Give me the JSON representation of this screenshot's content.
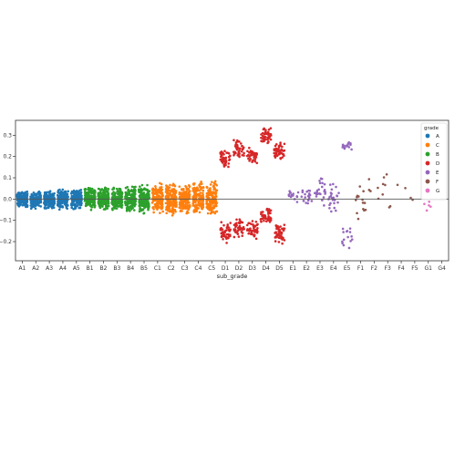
{
  "chart_data": {
    "type": "scatter",
    "subtype": "strip-plot",
    "title": "",
    "xlabel": "sub_grade",
    "ylabel": "",
    "ylim": [
      -0.29,
      0.37
    ],
    "yticks": [
      -0.2,
      -0.1,
      0.0,
      0.1,
      0.2,
      0.3
    ],
    "ytick_labels": [
      "−0.2",
      "−0.1",
      "0.0",
      "0.1",
      "0.2",
      "0.3"
    ],
    "reference_line_y": 0.0,
    "grid": false,
    "categories": [
      "A1",
      "A2",
      "A3",
      "A4",
      "A5",
      "B1",
      "B2",
      "B3",
      "B4",
      "B5",
      "C1",
      "C2",
      "C3",
      "C4",
      "C5",
      "D1",
      "D2",
      "D3",
      "D4",
      "D5",
      "E1",
      "E2",
      "E3",
      "E4",
      "E5",
      "F1",
      "F2",
      "F3",
      "F4",
      "F5",
      "G1",
      "G4"
    ],
    "legend": {
      "title": "grade",
      "placement": "top-right",
      "entries": [
        {
          "label": "A",
          "color": "#1f77b4"
        },
        {
          "label": "C",
          "color": "#ff7f0e"
        },
        {
          "label": "B",
          "color": "#2ca02c"
        },
        {
          "label": "D",
          "color": "#d62728"
        },
        {
          "label": "E",
          "color": "#9467bd"
        },
        {
          "label": "F",
          "color": "#8c564b"
        },
        {
          "label": "G",
          "color": "#e377c2"
        }
      ]
    },
    "clusters": [
      {
        "category": "A1",
        "grade": "A",
        "count": 150,
        "ranges": [
          [
            -0.04,
            0.04
          ]
        ]
      },
      {
        "category": "A2",
        "grade": "A",
        "count": 150,
        "ranges": [
          [
            -0.045,
            0.04
          ]
        ]
      },
      {
        "category": "A3",
        "grade": "A",
        "count": 150,
        "ranges": [
          [
            -0.05,
            0.04
          ]
        ]
      },
      {
        "category": "A4",
        "grade": "A",
        "count": 150,
        "ranges": [
          [
            -0.05,
            0.05
          ]
        ]
      },
      {
        "category": "A5",
        "grade": "A",
        "count": 150,
        "ranges": [
          [
            -0.05,
            0.05
          ]
        ]
      },
      {
        "category": "B1",
        "grade": "B",
        "count": 150,
        "ranges": [
          [
            -0.06,
            0.06
          ]
        ]
      },
      {
        "category": "B2",
        "grade": "B",
        "count": 150,
        "ranges": [
          [
            -0.06,
            0.06
          ]
        ]
      },
      {
        "category": "B3",
        "grade": "B",
        "count": 150,
        "ranges": [
          [
            -0.06,
            0.06
          ]
        ]
      },
      {
        "category": "B4",
        "grade": "B",
        "count": 150,
        "ranges": [
          [
            -0.06,
            0.07
          ]
        ]
      },
      {
        "category": "B5",
        "grade": "B",
        "count": 150,
        "ranges": [
          [
            -0.07,
            0.07
          ]
        ]
      },
      {
        "category": "C1",
        "grade": "C",
        "count": 150,
        "ranges": [
          [
            -0.07,
            0.08
          ]
        ]
      },
      {
        "category": "C2",
        "grade": "C",
        "count": 150,
        "ranges": [
          [
            -0.08,
            0.08
          ]
        ]
      },
      {
        "category": "C3",
        "grade": "C",
        "count": 150,
        "ranges": [
          [
            -0.08,
            0.08
          ]
        ]
      },
      {
        "category": "C4",
        "grade": "C",
        "count": 150,
        "ranges": [
          [
            -0.08,
            0.09
          ]
        ]
      },
      {
        "category": "C5",
        "grade": "C",
        "count": 150,
        "ranges": [
          [
            -0.08,
            0.09
          ]
        ]
      },
      {
        "category": "D1",
        "grade": "D",
        "count": 90,
        "ranges": [
          [
            0.15,
            0.24
          ],
          [
            -0.21,
            -0.1
          ]
        ]
      },
      {
        "category": "D2",
        "grade": "D",
        "count": 90,
        "ranges": [
          [
            0.19,
            0.28
          ],
          [
            -0.19,
            -0.08
          ]
        ]
      },
      {
        "category": "D3",
        "grade": "D",
        "count": 90,
        "ranges": [
          [
            0.16,
            0.25
          ],
          [
            -0.19,
            -0.1
          ]
        ]
      },
      {
        "category": "D4",
        "grade": "D",
        "count": 90,
        "ranges": [
          [
            0.25,
            0.34
          ],
          [
            -0.12,
            -0.04
          ]
        ]
      },
      {
        "category": "D5",
        "grade": "D",
        "count": 90,
        "ranges": [
          [
            0.18,
            0.27
          ],
          [
            -0.23,
            -0.1
          ]
        ]
      },
      {
        "category": "E1",
        "grade": "E",
        "count": 15,
        "ranges": [
          [
            -0.02,
            0.05
          ]
        ]
      },
      {
        "category": "E2",
        "grade": "E",
        "count": 20,
        "ranges": [
          [
            -0.03,
            0.06
          ]
        ]
      },
      {
        "category": "E3",
        "grade": "E",
        "count": 25,
        "ranges": [
          [
            -0.04,
            0.1
          ]
        ]
      },
      {
        "category": "E4",
        "grade": "E",
        "count": 25,
        "ranges": [
          [
            -0.06,
            0.09
          ]
        ]
      },
      {
        "category": "E5",
        "grade": "E",
        "count": 30,
        "ranges": [
          [
            0.23,
            0.27
          ],
          [
            -0.24,
            -0.1
          ]
        ]
      },
      {
        "category": "F1",
        "grade": "F",
        "count": 14,
        "ranges": [
          [
            -0.11,
            0.09
          ]
        ]
      },
      {
        "category": "F2",
        "grade": "F",
        "count": 5,
        "ranges": [
          [
            -0.05,
            0.18
          ]
        ]
      },
      {
        "category": "F3",
        "grade": "F",
        "count": 7,
        "ranges": [
          [
            -0.09,
            0.15
          ]
        ]
      },
      {
        "category": "F4",
        "grade": "F",
        "count": 2,
        "ranges": [
          [
            0.0,
            0.09
          ]
        ]
      },
      {
        "category": "F5",
        "grade": "F",
        "count": 2,
        "ranges": [
          [
            -0.04,
            0.09
          ]
        ]
      },
      {
        "category": "G1",
        "grade": "G",
        "count": 5,
        "ranges": [
          [
            -0.07,
            0.04
          ]
        ]
      }
    ]
  }
}
